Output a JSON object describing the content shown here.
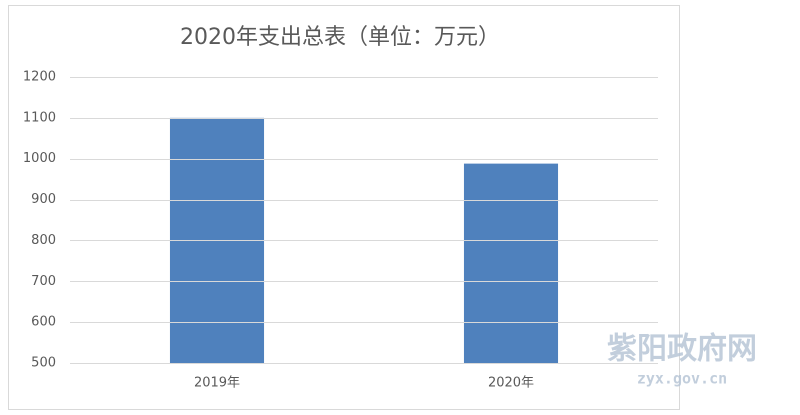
{
  "chart_data": {
    "type": "bar",
    "title": "2020年支出总表（单位：万元）",
    "categories": [
      "2019年",
      "2020年"
    ],
    "values": [
      1100,
      988
    ],
    "color": "#4f81bd",
    "ylim": [
      500,
      1200
    ],
    "yticks": [
      500,
      600,
      700,
      800,
      900,
      1000,
      1100,
      1200
    ],
    "grid": true
  },
  "watermark": {
    "name": "紫阳政府网",
    "url": "zyx.gov.cn"
  }
}
